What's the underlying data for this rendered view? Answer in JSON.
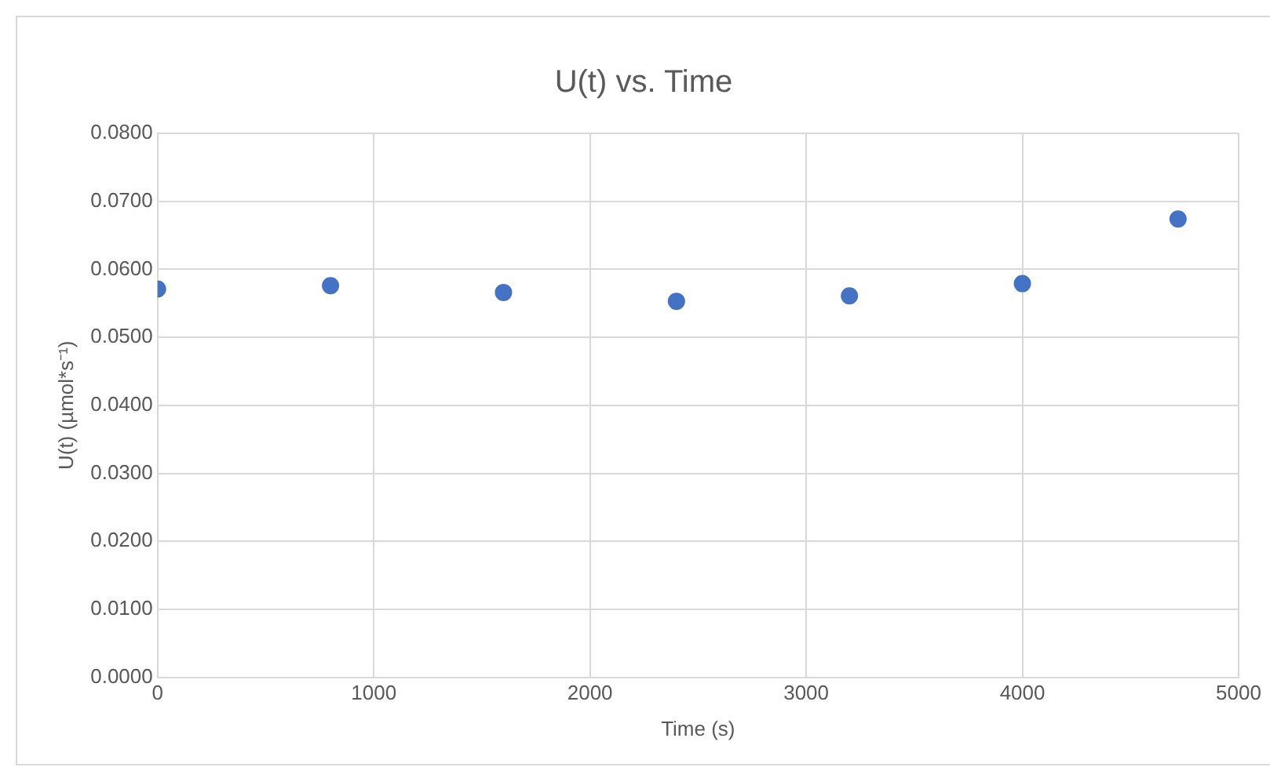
{
  "chart_data": {
    "type": "scatter",
    "title": "U(t) vs. Time",
    "xlabel": "Time (s)",
    "ylabel": "U(t) (µmol*s⁻¹)",
    "x": [
      0,
      800,
      1600,
      2400,
      3200,
      4000,
      4720
    ],
    "series": [
      {
        "color": "#4472c4",
        "values": [
          0.0571,
          0.0576,
          0.0566,
          0.0553,
          0.0561,
          0.0579,
          0.0674
        ]
      }
    ],
    "xlim": [
      0,
      5000
    ],
    "xticks": [
      0,
      1000,
      2000,
      3000,
      4000,
      5000
    ],
    "ylim": [
      0,
      0.08
    ],
    "yticks": [
      {
        "value": 0,
        "label": "0.0000"
      },
      {
        "value": 0.01,
        "label": "0.0100"
      },
      {
        "value": 0.02,
        "label": "0.0200"
      },
      {
        "value": 0.03,
        "label": "0.0300"
      },
      {
        "value": 0.04,
        "label": "0.0400"
      },
      {
        "value": 0.05,
        "label": "0.0500"
      },
      {
        "value": 0.06,
        "label": "0.0600"
      },
      {
        "value": 0.07,
        "label": "0.0700"
      },
      {
        "value": 0.08,
        "label": "0.0800"
      }
    ],
    "grid": true,
    "legend": false,
    "marker": "circle"
  }
}
